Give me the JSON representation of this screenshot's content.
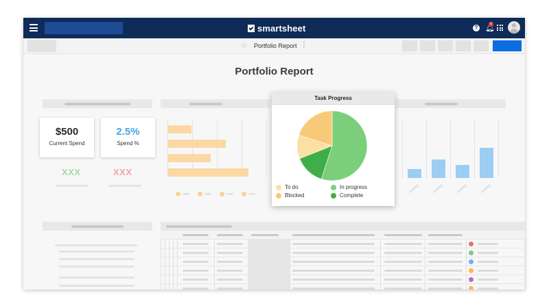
{
  "topbar": {
    "logo_text": "smartsheet",
    "notification_count": "6",
    "icons": [
      "menu-icon",
      "help-icon",
      "bell-icon",
      "apps-grid-icon",
      "avatar"
    ]
  },
  "toolbar": {
    "sheet_name": "Portfolio Report",
    "more_glyph": "⋮",
    "star_glyph": "☆"
  },
  "report": {
    "title": "Portfolio Report"
  },
  "kpis": [
    {
      "value": "$500",
      "label": "Current Spend",
      "value_color": "#2b2b2b"
    },
    {
      "value": "2.5%",
      "label": "Spend %",
      "value_color": "#4aa3df"
    }
  ],
  "kpi_status": [
    {
      "text": "XXX",
      "color": "#a7d7a6"
    },
    {
      "text": "XXX",
      "color": "#f0a6a0"
    }
  ],
  "task_progress": {
    "title": "Task Progress",
    "chart_data": {
      "type": "pie",
      "categories": [
        "In progress",
        "Complete",
        "To do",
        "Blocked"
      ],
      "values": [
        55,
        14,
        11,
        20
      ],
      "colors": [
        "#7ccf7a",
        "#3fae4a",
        "#fbe0a3",
        "#f9c97a"
      ]
    },
    "legend": [
      {
        "label": "To do",
        "color": "#fbe0a3"
      },
      {
        "label": "In progress",
        "color": "#7ccf7a"
      },
      {
        "label": "Blocked",
        "color": "#f9c97a"
      },
      {
        "label": "Complete",
        "color": "#3fae4a"
      }
    ]
  },
  "background_bar_chart": {
    "chart_data": {
      "type": "bar",
      "orientation": "horizontal",
      "values": [
        35,
        85,
        63,
        118
      ],
      "color": "#fbd8a4"
    }
  },
  "background_column_chart": {
    "chart_data": {
      "type": "bar",
      "values": [
        13,
        27,
        19,
        44
      ],
      "color": "#9ccdf3"
    }
  },
  "table_avatar_colors": [
    "#e57373",
    "#81c784",
    "#64b5f6",
    "#ffb74d",
    "#ba68c8",
    "#ffb74d"
  ]
}
